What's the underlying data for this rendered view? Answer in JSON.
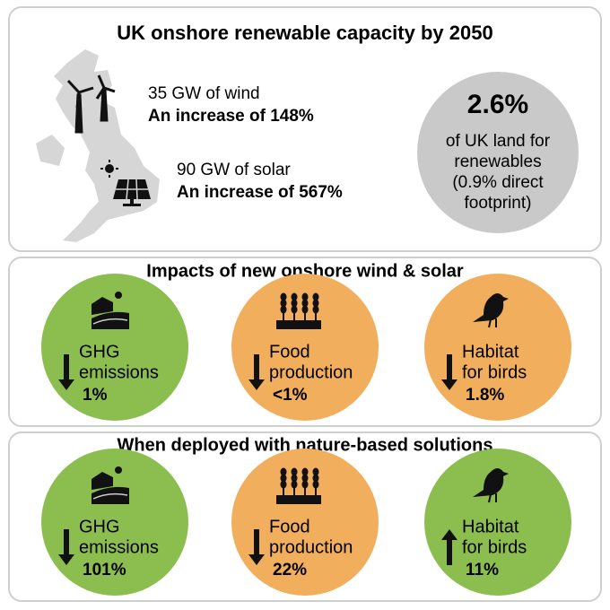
{
  "capacity": {
    "title": "UK onshore renewable capacity by 2050",
    "wind": {
      "amount": "35 GW of wind",
      "increase": "An increase of 148%"
    },
    "solar": {
      "amount": "90 GW of solar",
      "increase": "An increase of 567%"
    },
    "land": {
      "value": "2.6%",
      "lines": [
        "of UK land for",
        "renewables",
        "(0.9% direct",
        "footprint)"
      ],
      "color": "#c9c9c9"
    }
  },
  "impacts": {
    "title": "Impacts of new onshore wind & solar",
    "items": [
      {
        "label": [
          "GHG",
          "emissions"
        ],
        "value": "1%",
        "direction": "down",
        "color": "#8cbd4f"
      },
      {
        "label": [
          "Food",
          "production"
        ],
        "value": "<1%",
        "direction": "down",
        "color": "#f1ae5c"
      },
      {
        "label": [
          "Habitat",
          "for birds"
        ],
        "value": "1.8%",
        "direction": "down",
        "color": "#f1ae5c"
      }
    ]
  },
  "nature": {
    "title": "When deployed with nature-based solutions",
    "items": [
      {
        "label": [
          "GHG",
          "emissions"
        ],
        "value": "101%",
        "direction": "down",
        "color": "#8cbd4f"
      },
      {
        "label": [
          "Food",
          "production"
        ],
        "value": "22%",
        "direction": "down",
        "color": "#f1ae5c"
      },
      {
        "label": [
          "Habitat",
          "for birds"
        ],
        "value": "11%",
        "direction": "up",
        "color": "#8cbd4f"
      }
    ]
  }
}
